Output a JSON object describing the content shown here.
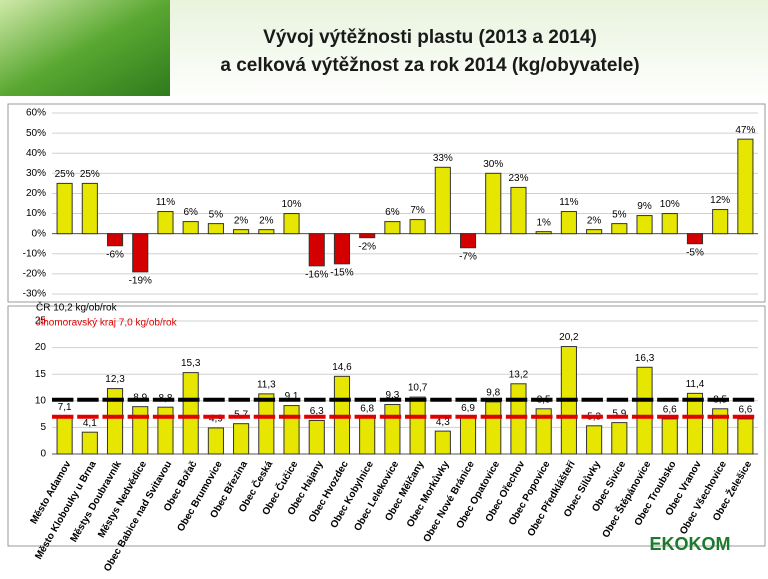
{
  "title": [
    "Vývoj výtěžnosti plastu (2013 a 2014)",
    "a celková výtěžnost za rok 2014 (kg/obyvatele)"
  ],
  "logo": "EKOKOM",
  "chart_data": [
    {
      "type": "bar",
      "values": [
        25,
        25,
        -6,
        -19,
        11,
        6,
        5,
        2,
        2,
        10,
        -16,
        -15,
        -2,
        6,
        7,
        33,
        -7,
        30,
        23,
        1,
        11,
        2,
        5,
        9,
        10,
        -5,
        12,
        47
      ],
      "value_labels": [
        "25%",
        "25%",
        "-6%",
        "-19%",
        "11%",
        "6%",
        "5%",
        "2%",
        "2%",
        "10%",
        "-16%",
        "-15%",
        "-2%",
        "6%",
        "7%",
        "33%",
        "-7%",
        "30%",
        "23%",
        "1%",
        "11%",
        "2%",
        "5%",
        "9%",
        "10%",
        "-5%",
        "12%",
        "47%"
      ],
      "color": "#e6e600",
      "negative_color": "#d40000",
      "ylim": [
        -30,
        60
      ],
      "yticks": [
        {
          "value": -30,
          "label": "-30%"
        },
        {
          "value": -20,
          "label": "-20%"
        },
        {
          "value": -10,
          "label": "-10%"
        },
        {
          "value": 0,
          "label": "0%"
        },
        {
          "value": 10,
          "label": "10%"
        },
        {
          "value": 20,
          "label": "20%"
        },
        {
          "value": 30,
          "label": "30%"
        },
        {
          "value": 40,
          "label": "40%"
        },
        {
          "value": 50,
          "label": "50%"
        },
        {
          "value": 60,
          "label": "60%"
        }
      ],
      "grid": true
    },
    {
      "type": "bar",
      "categories": [
        "Město Adamov",
        "Město Klobouky u Brna",
        "Městys Doubravník",
        "Městys Nedvědice",
        "Obec Babice nad Svitavou",
        "Obec Bořač",
        "Obec Brumovice",
        "Obec Březina",
        "Obec Česká",
        "Obec Čučice",
        "Obec Hajany",
        "Obec Hvozdec",
        "Obec Kobylnice",
        "Obec Lelekovice",
        "Obec Mělčany",
        "Obec Morkůvky",
        "Obec Nové Bránice",
        "Obec Opatovice",
        "Obec Ořechov",
        "Obec Popovice",
        "Obec Předklášteří",
        "Obec Silůvky",
        "Obec Sivice",
        "Obec Štěpánovice",
        "Obec Troubsko",
        "Obec Vranov",
        "Obec Všechovice",
        "Obec Želešice"
      ],
      "values": [
        7.1,
        4.1,
        12.3,
        8.9,
        8.8,
        15.3,
        4.9,
        5.7,
        11.3,
        9.1,
        6.3,
        14.6,
        6.8,
        9.3,
        10.7,
        4.3,
        6.9,
        9.8,
        13.2,
        8.5,
        20.2,
        5.3,
        5.9,
        16.3,
        6.6,
        11.4,
        8.5,
        6.6
      ],
      "value_labels": [
        "7,1",
        "4,1",
        "12,3",
        "8,9",
        "8,8",
        "15,3",
        "4,9",
        "5,7",
        "11,3",
        "9,1",
        "6,3",
        "14,6",
        "6,8",
        "9,3",
        "10,7",
        "4,3",
        "6,9",
        "9,8",
        "13,2",
        "8,5",
        "20,2",
        "5,3",
        "5,9",
        "16,3",
        "6,6",
        "11,4",
        "8,5",
        "6,6"
      ],
      "color": "#e6e600",
      "ylim": [
        0,
        25
      ],
      "yticks": [
        0,
        5,
        10,
        15,
        20,
        25
      ],
      "grid": true,
      "reference_lines": [
        {
          "label": "ČR 10,2 kg/ob/rok",
          "value": 10.2,
          "color": "#000000"
        },
        {
          "label": "Jihomoravský kraj 7,0 kg/ob/rok",
          "value": 7.0,
          "color": "#e00000"
        }
      ]
    }
  ]
}
